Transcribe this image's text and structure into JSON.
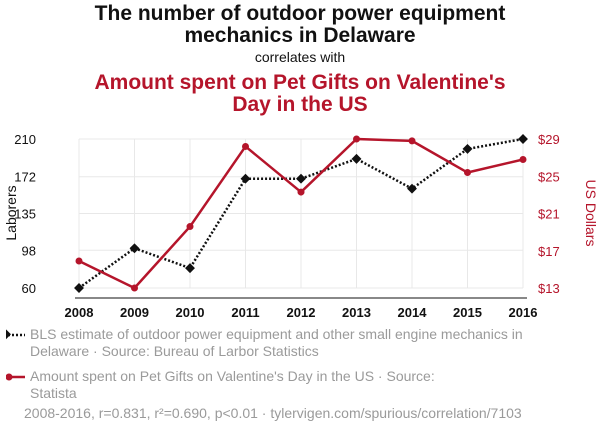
{
  "title": {
    "line1": "The number of outdoor power equipment",
    "line2": "mechanics in Delaware",
    "connector": "correlates with",
    "red_line1": "Amount spent on Pet Gifts on Valentine's",
    "red_line2": "Day in the US"
  },
  "chart_data": {
    "type": "line",
    "x": [
      2008,
      2009,
      2010,
      2011,
      2012,
      2013,
      2014,
      2015,
      2016
    ],
    "x_tick_labels": [
      "2008",
      "2009",
      "2010",
      "2011",
      "2012",
      "2013",
      "2014",
      "2015",
      "2016"
    ],
    "series": [
      {
        "name": "BLS estimate of outdoor power equipment and other small engine mechanics in Delaware",
        "axis": "left",
        "color": "#111111",
        "style": "dotted",
        "marker": "diamond",
        "values": [
          60,
          100,
          80,
          170,
          170,
          190,
          160,
          200,
          210
        ]
      },
      {
        "name": "Amount spent on Pet Gifts on Valentine's Day in the US",
        "axis": "right",
        "color": "#b5152b",
        "style": "solid",
        "marker": "circle",
        "values": [
          15.9,
          13.0,
          19.6,
          28.2,
          23.3,
          29.0,
          28.8,
          25.4,
          26.8
        ]
      }
    ],
    "y_left": {
      "label": "Laborers",
      "range": [
        60,
        210
      ],
      "ticks": [
        60,
        98,
        135,
        172,
        210
      ],
      "tick_labels": [
        "60",
        "98",
        "135",
        "172",
        "210"
      ]
    },
    "y_right": {
      "label": "US Dollars",
      "range": [
        13,
        29
      ],
      "ticks": [
        13,
        17,
        21,
        25,
        29
      ],
      "tick_labels": [
        "$13",
        "$17",
        "$21",
        "$25",
        "$29"
      ]
    },
    "grid": true,
    "legend_position": "bottom-left"
  },
  "legend": {
    "items": [
      {
        "line1": "BLS estimate of outdoor power equipment and other small engine mechanics in",
        "line2": "Delaware · Source: Bureau of Larbor Statistics"
      },
      {
        "line1": "Amount spent on Pet Gifts on Valentine's Day in the US · Source:",
        "line2": "Statista"
      }
    ]
  },
  "footer": "2008-2016, r=0.831, r²=0.690, p<0.01 · tylervigen.com/spurious/correlation/7103",
  "colors": {
    "dark": "#111111",
    "red": "#b5152b",
    "muted": "#9a9a9a",
    "grid": "#e8e8e8"
  }
}
